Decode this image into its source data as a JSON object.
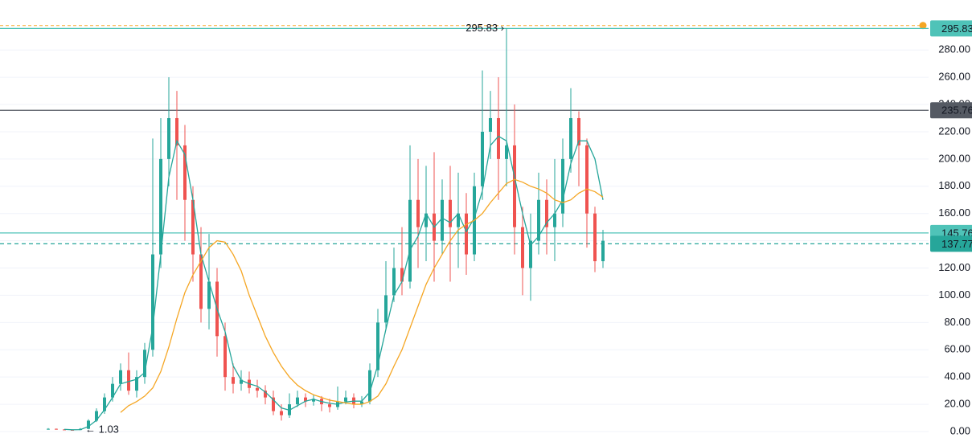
{
  "chart_data": {
    "type": "candlestick",
    "ylim": [
      0,
      300
    ],
    "yticks": [
      {
        "value": 0,
        "label": "0.00"
      },
      {
        "value": 20,
        "label": "20.00"
      },
      {
        "value": 40,
        "label": "40.00"
      },
      {
        "value": 60,
        "label": "60.00"
      },
      {
        "value": 80,
        "label": "80.00"
      },
      {
        "value": 100,
        "label": "100.00"
      },
      {
        "value": 120,
        "label": "120.00"
      },
      {
        "value": 140,
        "label": "140.00"
      },
      {
        "value": 160,
        "label": "160.00"
      },
      {
        "value": 180,
        "label": "180.00"
      },
      {
        "value": 200,
        "label": "200.00"
      },
      {
        "value": 220,
        "label": "220.00"
      },
      {
        "value": 240,
        "label": "240.00"
      },
      {
        "value": 260,
        "label": "260.00"
      },
      {
        "value": 280,
        "label": "280.00"
      }
    ],
    "grid": true,
    "up_color": "#26a69a",
    "down_color": "#ef5350",
    "open": [
      1.5,
      2,
      1.5,
      1.2,
      1.1,
      2,
      8,
      15,
      25,
      35,
      45,
      30,
      40,
      60,
      130,
      200,
      230,
      210,
      170,
      130,
      90,
      110,
      70,
      40,
      35,
      38,
      32,
      30,
      25,
      15,
      12,
      20,
      25,
      22,
      24,
      20,
      18,
      22,
      25,
      20,
      22,
      45,
      80,
      100,
      120,
      110,
      170,
      150,
      160,
      140,
      170,
      150,
      160,
      130,
      180,
      220,
      230,
      200,
      210,
      150,
      120,
      140,
      170,
      150,
      160,
      200,
      230,
      210,
      160,
      125
    ],
    "high": [
      2.5,
      2.2,
      1.8,
      1.5,
      2.5,
      9,
      17,
      28,
      40,
      50,
      58,
      45,
      65,
      215,
      230,
      260,
      250,
      225,
      180,
      150,
      145,
      120,
      80,
      50,
      45,
      44,
      38,
      34,
      30,
      20,
      28,
      30,
      28,
      27,
      26,
      24,
      33,
      30,
      28,
      26,
      50,
      90,
      125,
      135,
      150,
      210,
      200,
      195,
      205,
      185,
      195,
      190,
      175,
      190,
      265,
      250,
      260,
      295.83,
      240,
      165,
      160,
      190,
      185,
      200,
      215,
      252,
      235,
      215,
      165,
      148
    ],
    "low": [
      1.3,
      1.3,
      1.1,
      1.05,
      1.03,
      1.8,
      7,
      13,
      22,
      30,
      27,
      25,
      35,
      55,
      120,
      180,
      170,
      140,
      110,
      80,
      75,
      55,
      30,
      28,
      30,
      28,
      25,
      20,
      12,
      8,
      10,
      18,
      18,
      19,
      15,
      14,
      16,
      20,
      17,
      18,
      20,
      40,
      75,
      95,
      100,
      105,
      120,
      125,
      110,
      130,
      110,
      120,
      115,
      125,
      170,
      200,
      170,
      180,
      130,
      100,
      96,
      130,
      130,
      125,
      150,
      190,
      180,
      135,
      117,
      120
    ],
    "close": [
      2,
      1.5,
      1.2,
      1.1,
      2,
      8,
      15,
      25,
      35,
      45,
      30,
      40,
      60,
      130,
      200,
      230,
      210,
      170,
      130,
      90,
      110,
      70,
      40,
      35,
      38,
      32,
      30,
      25,
      15,
      12,
      20,
      25,
      22,
      24,
      20,
      18,
      22,
      25,
      20,
      22,
      45,
      80,
      100,
      120,
      110,
      170,
      150,
      160,
      140,
      170,
      150,
      160,
      130,
      180,
      220,
      230,
      200,
      210,
      150,
      120,
      140,
      170,
      150,
      160,
      200,
      230,
      210,
      160,
      125,
      140
    ],
    "lines": [
      {
        "color": "#26a69a",
        "values": [
          null,
          null,
          1.6,
          1.3,
          1.4,
          3.7,
          8.3,
          16,
          25,
          35,
          36.7,
          38.3,
          43.3,
          76.7,
          130,
          186.7,
          213.3,
          203.3,
          170,
          130,
          110,
          90,
          73.3,
          48.3,
          37.7,
          35,
          33.3,
          29,
          23.3,
          17.3,
          15.7,
          19,
          22.3,
          23.7,
          22,
          20.7,
          20,
          21.7,
          22.3,
          22.3,
          29,
          49,
          75,
          100,
          110,
          133.3,
          143.3,
          160,
          150,
          156.7,
          153.3,
          160,
          146.7,
          156.7,
          176.7,
          210,
          216.7,
          213.3,
          186.7,
          160,
          136.7,
          143.3,
          153.3,
          160,
          170,
          196.7,
          213.3,
          213.3,
          200,
          170
        ]
      },
      {
        "color": "#f5a623",
        "values": [
          null,
          null,
          null,
          null,
          null,
          null,
          null,
          null,
          null,
          14,
          19,
          22,
          26,
          32,
          44,
          62,
          83,
          102,
          115,
          125,
          135,
          140,
          139,
          130,
          118,
          100,
          85,
          70,
          58,
          48,
          40,
          34,
          30,
          27,
          25,
          23,
          22,
          21,
          20,
          20,
          22,
          26,
          35,
          48,
          60,
          76,
          92,
          108,
          120,
          130,
          140,
          148,
          152,
          155,
          160,
          168,
          175,
          182,
          185,
          183,
          180,
          178,
          175,
          170,
          168,
          170,
          175,
          178,
          176,
          172
        ]
      }
    ],
    "price_lines": [
      {
        "value": 295.83,
        "color": "#4fc3b8",
        "style": "solid"
      },
      {
        "value": 235.76,
        "color": "#555a63",
        "style": "solid"
      },
      {
        "value": 145.76,
        "color": "#4fc3b8",
        "style": "solid"
      },
      {
        "value": 137.77,
        "color": "#26a69a",
        "style": "dashed"
      }
    ],
    "alert": {
      "value": 298,
      "color": "#f5a623"
    },
    "annotations": [
      {
        "label": "295.83 ›",
        "index": 57,
        "value": 295.83,
        "side": "left"
      },
      {
        "label": "← 1.03",
        "index": 4,
        "value": 1.03,
        "side": "right"
      }
    ]
  }
}
